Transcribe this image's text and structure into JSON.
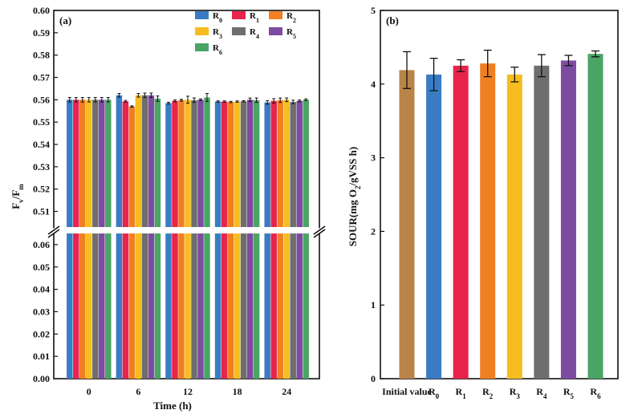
{
  "figure": {
    "colors": {
      "R0": "#3a7cc4",
      "R1": "#e8244c",
      "R2": "#f07f22",
      "R3": "#f5bd1f",
      "R4": "#6e6e6e",
      "R5": "#7d4ba0",
      "R6": "#4aa564",
      "initial": "#b98448"
    }
  },
  "chart_data": [
    {
      "type": "bar",
      "panel_label": "(a)",
      "title": "",
      "xlabel": "Time (h)",
      "ylabel_main": "F",
      "ylabel_sub1": "v",
      "ylabel_mid": "/F",
      "ylabel_sub2": "m",
      "categories": [
        "0",
        "6",
        "12",
        "18",
        "24"
      ],
      "y_break": {
        "lower": [
          0,
          0.065
        ],
        "upper": [
          0.503,
          0.6
        ]
      },
      "lower_ticks": [
        "0.00",
        "0.01",
        "0.02",
        "0.03",
        "0.04",
        "0.05",
        "0.06"
      ],
      "upper_ticks": [
        "0.51",
        "0.52",
        "0.53",
        "0.54",
        "0.55",
        "0.56",
        "0.57",
        "0.58",
        "0.59",
        "0.60"
      ],
      "legend_position": "top-right",
      "series": [
        {
          "name": "R",
          "sub": "0",
          "key": "R0",
          "values": [
            0.56,
            0.562,
            0.5585,
            0.5592,
            0.5588
          ],
          "errors": [
            0.001,
            0.0008,
            0.0004,
            0.0003,
            0.0008
          ]
        },
        {
          "name": "R",
          "sub": "1",
          "key": "R1",
          "values": [
            0.56,
            0.5593,
            0.5595,
            0.5592,
            0.5595
          ],
          "errors": [
            0.001,
            0.0004,
            0.0004,
            0.0003,
            0.001
          ]
        },
        {
          "name": "R",
          "sub": "2",
          "key": "R2",
          "values": [
            0.56,
            0.557,
            0.5598,
            0.559,
            0.5598
          ],
          "errors": [
            0.001,
            0.0003,
            0.0004,
            0.0003,
            0.001
          ]
        },
        {
          "name": "R",
          "sub": "3",
          "key": "R3",
          "values": [
            0.56,
            0.562,
            0.56,
            0.5592,
            0.56
          ],
          "errors": [
            0.001,
            0.0008,
            0.0016,
            0.0003,
            0.0008
          ]
        },
        {
          "name": "R",
          "sub": "4",
          "key": "R4",
          "values": [
            0.56,
            0.562,
            0.5598,
            0.5593,
            0.559
          ],
          "errors": [
            0.001,
            0.001,
            0.001,
            0.0003,
            0.0008
          ]
        },
        {
          "name": "R",
          "sub": "5",
          "key": "R5",
          "values": [
            0.56,
            0.562,
            0.56,
            0.56,
            0.5595
          ],
          "errors": [
            0.001,
            0.001,
            0.0004,
            0.0008,
            0.0004
          ]
        },
        {
          "name": "R",
          "sub": "6",
          "key": "R6",
          "values": [
            0.56,
            0.5605,
            0.561,
            0.5598,
            0.56
          ],
          "errors": [
            0.001,
            0.0012,
            0.0018,
            0.001,
            0.0004
          ]
        }
      ]
    },
    {
      "type": "bar",
      "panel_label": "(b)",
      "title": "",
      "xlabel": "",
      "ylabel_main": "SOUR(mg O",
      "ylabel_sub": "2",
      "ylabel_tail": "/gVSS h)",
      "ylim": [
        0,
        5
      ],
      "yticks": [
        "0",
        "1",
        "2",
        "3",
        "4",
        "5"
      ],
      "categories": [
        {
          "name": "Initial value",
          "sub": "",
          "key": "initial"
        },
        {
          "name": "R",
          "sub": "0",
          "key": "R0"
        },
        {
          "name": "R",
          "sub": "1",
          "key": "R1"
        },
        {
          "name": "R",
          "sub": "2",
          "key": "R2"
        },
        {
          "name": "R",
          "sub": "3",
          "key": "R3"
        },
        {
          "name": "R",
          "sub": "4",
          "key": "R4"
        },
        {
          "name": "R",
          "sub": "5",
          "key": "R5"
        },
        {
          "name": "R",
          "sub": "6",
          "key": "R6"
        }
      ],
      "values": [
        4.19,
        4.13,
        4.25,
        4.28,
        4.13,
        4.25,
        4.32,
        4.41
      ],
      "errors": [
        0.25,
        0.22,
        0.08,
        0.18,
        0.1,
        0.15,
        0.07,
        0.04
      ]
    }
  ]
}
